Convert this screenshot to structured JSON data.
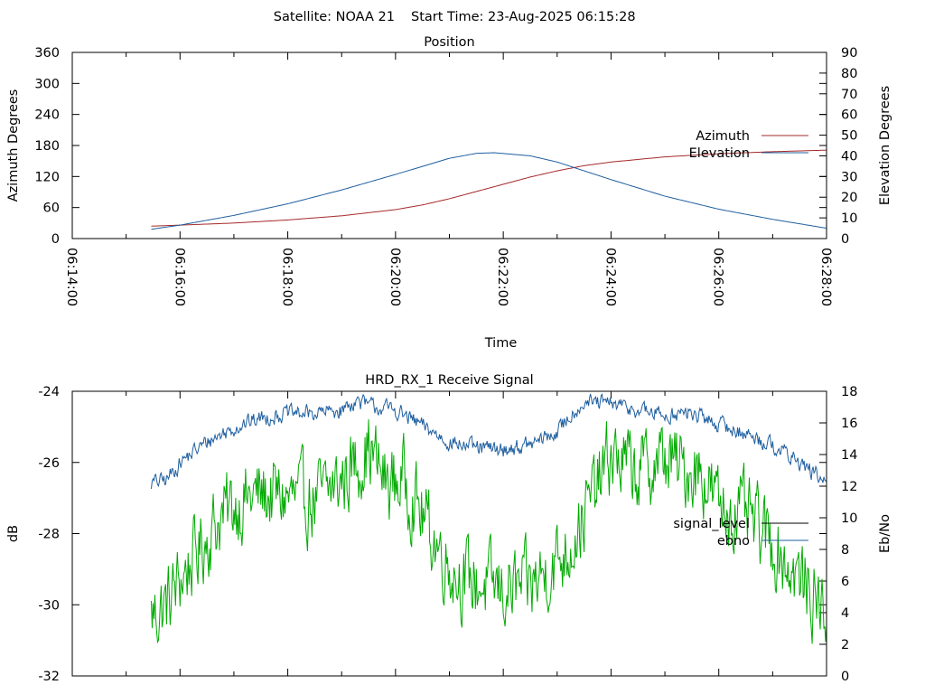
{
  "header": {
    "satellite": "Satellite: NOAA 21",
    "start_time": "Start Time: 23-Aug-2025 06:15:28"
  },
  "chart_data": [
    {
      "type": "line",
      "title": "Position",
      "xlabel": "Time",
      "ylabel": "Azimuth Degrees",
      "y2label": "Elevation Degrees",
      "x_ticks": [
        "06:14:00",
        "06:16:00",
        "06:18:00",
        "06:20:00",
        "06:22:00",
        "06:24:00",
        "06:26:00",
        "06:28:00"
      ],
      "xlim": [
        "06:14:00",
        "06:28:00"
      ],
      "ylim": [
        0,
        360
      ],
      "y_ticks": [
        0,
        60,
        120,
        180,
        240,
        300,
        360
      ],
      "y2lim": [
        0,
        90
      ],
      "y2_ticks": [
        0,
        10,
        20,
        30,
        40,
        50,
        60,
        70,
        80,
        90
      ],
      "legend_position": "right",
      "grid": false,
      "series": [
        {
          "name": "Azimuth",
          "axis": "y",
          "color": "#a52a2a",
          "x": [
            "06:15:28",
            "06:16:00",
            "06:17:00",
            "06:18:00",
            "06:19:00",
            "06:20:00",
            "06:20:30",
            "06:21:00",
            "06:21:30",
            "06:22:00",
            "06:22:30",
            "06:23:00",
            "06:23:30",
            "06:24:00",
            "06:25:00",
            "06:26:00",
            "06:27:00",
            "06:28:00"
          ],
          "y": [
            24,
            26,
            30,
            36,
            44,
            56,
            65,
            77,
            91,
            105,
            119,
            131,
            141,
            148,
            158,
            164,
            168,
            171
          ]
        },
        {
          "name": "Elevation",
          "axis": "y2",
          "color": "#1f5f9f",
          "x": [
            "06:15:28",
            "06:16:00",
            "06:17:00",
            "06:18:00",
            "06:19:00",
            "06:20:00",
            "06:21:00",
            "06:21:30",
            "06:21:50",
            "06:22:30",
            "06:23:00",
            "06:24:00",
            "06:25:00",
            "06:26:00",
            "06:27:00",
            "06:28:00"
          ],
          "y": [
            4.5,
            6.5,
            11.2,
            16.8,
            23.5,
            31,
            38.8,
            41.2,
            41.5,
            40,
            37,
            28.5,
            20.5,
            14.2,
            9.3,
            5
          ]
        }
      ]
    },
    {
      "type": "line",
      "title": "HRD_RX_1 Receive Signal",
      "xlabel": "",
      "ylabel": "dB",
      "y2label": "Eb/No",
      "xlim": [
        "06:14:00",
        "06:28:00"
      ],
      "ylim": [
        -32,
        -24
      ],
      "y_ticks": [
        -32,
        -30,
        -28,
        -26,
        -24
      ],
      "y2lim": [
        0,
        18
      ],
      "y2_ticks": [
        0,
        2,
        4,
        6,
        8,
        10,
        12,
        14,
        16,
        18
      ],
      "legend_position": "right",
      "grid": false,
      "series": [
        {
          "name": "signal_level",
          "axis": "y",
          "color": "#00aa00",
          "x": [
            "06:15:28",
            "06:15:45",
            "06:16:00",
            "06:16:20",
            "06:16:40",
            "06:17:00",
            "06:17:30",
            "06:18:00",
            "06:18:30",
            "06:19:00",
            "06:19:30",
            "06:19:50",
            "06:20:10",
            "06:20:30",
            "06:20:50",
            "06:21:10",
            "06:21:30",
            "06:22:00",
            "06:22:30",
            "06:22:50",
            "06:23:10",
            "06:23:30",
            "06:24:00",
            "06:24:30",
            "06:25:00",
            "06:25:20",
            "06:25:40",
            "06:26:00",
            "06:26:30",
            "06:27:00",
            "06:27:30",
            "06:28:00"
          ],
          "y": [
            -30.3,
            -30.0,
            -29.3,
            -28.5,
            -27.7,
            -27.2,
            -26.9,
            -27.0,
            -27.1,
            -26.5,
            -25.6,
            -26.6,
            -26.5,
            -27.5,
            -28.5,
            -29.2,
            -29.4,
            -29.6,
            -29.5,
            -29.0,
            -28.5,
            -27.5,
            -25.8,
            -26.3,
            -25.9,
            -26.2,
            -26.2,
            -27.2,
            -27.5,
            -28.3,
            -29.3,
            -30.2
          ]
        },
        {
          "name": "ebno",
          "axis": "y2",
          "color": "#1f5f9f",
          "x": [
            "06:15:28",
            "06:15:45",
            "06:16:00",
            "06:16:30",
            "06:17:00",
            "06:17:30",
            "06:18:00",
            "06:18:30",
            "06:19:00",
            "06:19:15",
            "06:19:30",
            "06:20:00",
            "06:20:30",
            "06:21:00",
            "06:21:30",
            "06:22:00",
            "06:22:30",
            "06:23:00",
            "06:23:15",
            "06:23:30",
            "06:24:00",
            "06:24:30",
            "06:25:00",
            "06:25:30",
            "06:26:00",
            "06:26:30",
            "06:27:00",
            "06:27:30",
            "06:28:00"
          ],
          "y": [
            12.2,
            12.4,
            13.5,
            14.8,
            15.7,
            16.3,
            16.6,
            16.6,
            16.8,
            17.4,
            17.1,
            16.8,
            15.8,
            14.8,
            14.4,
            14.3,
            14.6,
            15.4,
            16.5,
            17.3,
            17.2,
            16.8,
            16.5,
            16.6,
            15.9,
            15.3,
            14.6,
            13.5,
            12.2
          ]
        }
      ]
    }
  ]
}
